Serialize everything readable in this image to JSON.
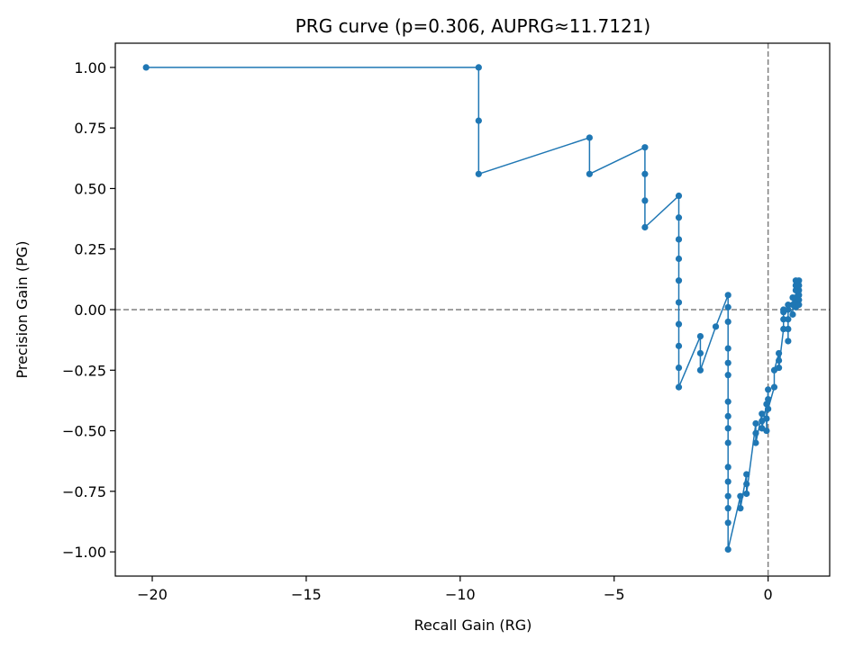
{
  "chart_data": {
    "type": "line",
    "title": "PRG curve (p=0.306, AUPRG≈11.7121)",
    "xlabel": "Recall Gain (RG)",
    "ylabel": "Precision Gain (PG)",
    "xlim": [
      -21.2,
      2.0
    ],
    "ylim": [
      -1.1,
      1.1
    ],
    "x_ticks": [
      -20,
      -15,
      -10,
      -5,
      0
    ],
    "x_tick_labels": [
      "−20",
      "−15",
      "−10",
      "−5",
      "0"
    ],
    "y_ticks": [
      1.0,
      0.75,
      0.5,
      0.25,
      0.0,
      -0.25,
      -0.5,
      -0.75,
      -1.0
    ],
    "y_tick_labels": [
      "1.00",
      "0.75",
      "0.50",
      "0.25",
      "0.00",
      "−0.25",
      "−0.50",
      "−0.75",
      "−1.00"
    ],
    "grid": false,
    "reference_lines": [
      {
        "axis": "x",
        "value": 0,
        "style": "dashed",
        "color": "#808080"
      },
      {
        "axis": "y",
        "value": 0,
        "style": "dashed",
        "color": "#808080"
      }
    ],
    "series": [
      {
        "color": "#1f77b4",
        "marker": "circle",
        "points": [
          [
            -20.2,
            1.0
          ],
          [
            -9.4,
            1.0
          ],
          [
            -9.4,
            0.78
          ],
          [
            -9.4,
            0.56
          ],
          [
            -5.8,
            0.71
          ],
          [
            -5.8,
            0.56
          ],
          [
            -4.0,
            0.67
          ],
          [
            -4.0,
            0.56
          ],
          [
            -4.0,
            0.45
          ],
          [
            -4.0,
            0.34
          ],
          [
            -2.9,
            0.47
          ],
          [
            -2.9,
            0.38
          ],
          [
            -2.9,
            0.29
          ],
          [
            -2.9,
            0.21
          ],
          [
            -2.9,
            0.12
          ],
          [
            -2.9,
            0.03
          ],
          [
            -2.9,
            -0.06
          ],
          [
            -2.9,
            -0.15
          ],
          [
            -2.9,
            -0.24
          ],
          [
            -2.9,
            -0.32
          ],
          [
            -2.2,
            -0.11
          ],
          [
            -2.2,
            -0.18
          ],
          [
            -2.2,
            -0.25
          ],
          [
            -1.7,
            -0.07
          ],
          [
            -1.3,
            0.06
          ],
          [
            -1.3,
            0.01
          ],
          [
            -1.3,
            -0.05
          ],
          [
            -1.3,
            -0.16
          ],
          [
            -1.3,
            -0.22
          ],
          [
            -1.3,
            -0.27
          ],
          [
            -1.3,
            -0.38
          ],
          [
            -1.3,
            -0.44
          ],
          [
            -1.3,
            -0.49
          ],
          [
            -1.3,
            -0.55
          ],
          [
            -1.3,
            -0.65
          ],
          [
            -1.3,
            -0.71
          ],
          [
            -1.3,
            -0.77
          ],
          [
            -1.3,
            -0.82
          ],
          [
            -1.3,
            -0.88
          ],
          [
            -1.3,
            -0.99
          ],
          [
            -0.9,
            -0.77
          ],
          [
            -0.9,
            -0.82
          ],
          [
            -0.7,
            -0.68
          ],
          [
            -0.7,
            -0.72
          ],
          [
            -0.7,
            -0.76
          ],
          [
            -0.4,
            -0.47
          ],
          [
            -0.4,
            -0.51
          ],
          [
            -0.4,
            -0.55
          ],
          [
            -0.2,
            -0.43
          ],
          [
            -0.2,
            -0.46
          ],
          [
            -0.2,
            -0.49
          ],
          [
            -0.05,
            -0.39
          ],
          [
            -0.05,
            -0.45
          ],
          [
            -0.05,
            -0.5
          ],
          [
            0.0,
            -0.33
          ],
          [
            0.0,
            -0.37
          ],
          [
            0.0,
            -0.41
          ],
          [
            0.2,
            -0.32
          ],
          [
            0.2,
            -0.25
          ],
          [
            0.35,
            -0.18
          ],
          [
            0.35,
            -0.21
          ],
          [
            0.35,
            -0.24
          ],
          [
            0.5,
            -0.08
          ],
          [
            0.5,
            -0.04
          ],
          [
            0.5,
            -0.01
          ],
          [
            0.5,
            0.0
          ],
          [
            0.65,
            0.0
          ],
          [
            0.65,
            -0.04
          ],
          [
            0.65,
            -0.08
          ],
          [
            0.65,
            -0.13
          ],
          [
            0.65,
            0.02
          ],
          [
            0.8,
            -0.02
          ],
          [
            0.8,
            0.02
          ],
          [
            0.8,
            0.05
          ],
          [
            0.9,
            0.05
          ],
          [
            0.9,
            0.08
          ],
          [
            0.9,
            0.1
          ],
          [
            0.9,
            0.12
          ],
          [
            0.9,
            0.01
          ],
          [
            0.9,
            0.03
          ],
          [
            1.0,
            0.06
          ],
          [
            1.0,
            0.08
          ],
          [
            1.0,
            0.04
          ],
          [
            1.0,
            0.02
          ],
          [
            1.0,
            0.1
          ],
          [
            1.0,
            0.12
          ]
        ]
      }
    ]
  }
}
